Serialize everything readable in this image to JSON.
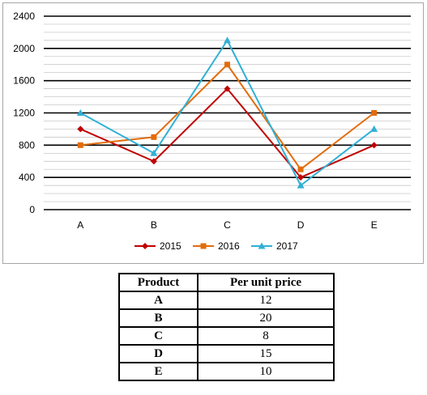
{
  "chart_data": {
    "type": "line",
    "categories": [
      "A",
      "B",
      "C",
      "D",
      "E"
    ],
    "series": [
      {
        "name": "2015",
        "values": [
          1000,
          600,
          1500,
          400,
          800
        ],
        "color": "#c00000",
        "marker": "diamond"
      },
      {
        "name": "2016",
        "values": [
          800,
          900,
          1800,
          500,
          1200
        ],
        "color": "#e36c09",
        "marker": "square"
      },
      {
        "name": "2017",
        "values": [
          1200,
          700,
          2100,
          300,
          1000
        ],
        "color": "#31b0d5",
        "marker": "triangle"
      }
    ],
    "y_ticks": [
      "0",
      "400",
      "800",
      "1200",
      "1600",
      "2000",
      "2400"
    ],
    "ylim": [
      0,
      2400
    ],
    "major_step": 400,
    "minor_step": 100,
    "grid": true,
    "legend_position": "bottom"
  },
  "table": {
    "headers": [
      "Product",
      "Per unit price"
    ],
    "rows": [
      {
        "product": "A",
        "price": "12"
      },
      {
        "product": "B",
        "price": "20"
      },
      {
        "product": "C",
        "price": "8"
      },
      {
        "product": "D",
        "price": "15"
      },
      {
        "product": "E",
        "price": "10"
      }
    ]
  }
}
